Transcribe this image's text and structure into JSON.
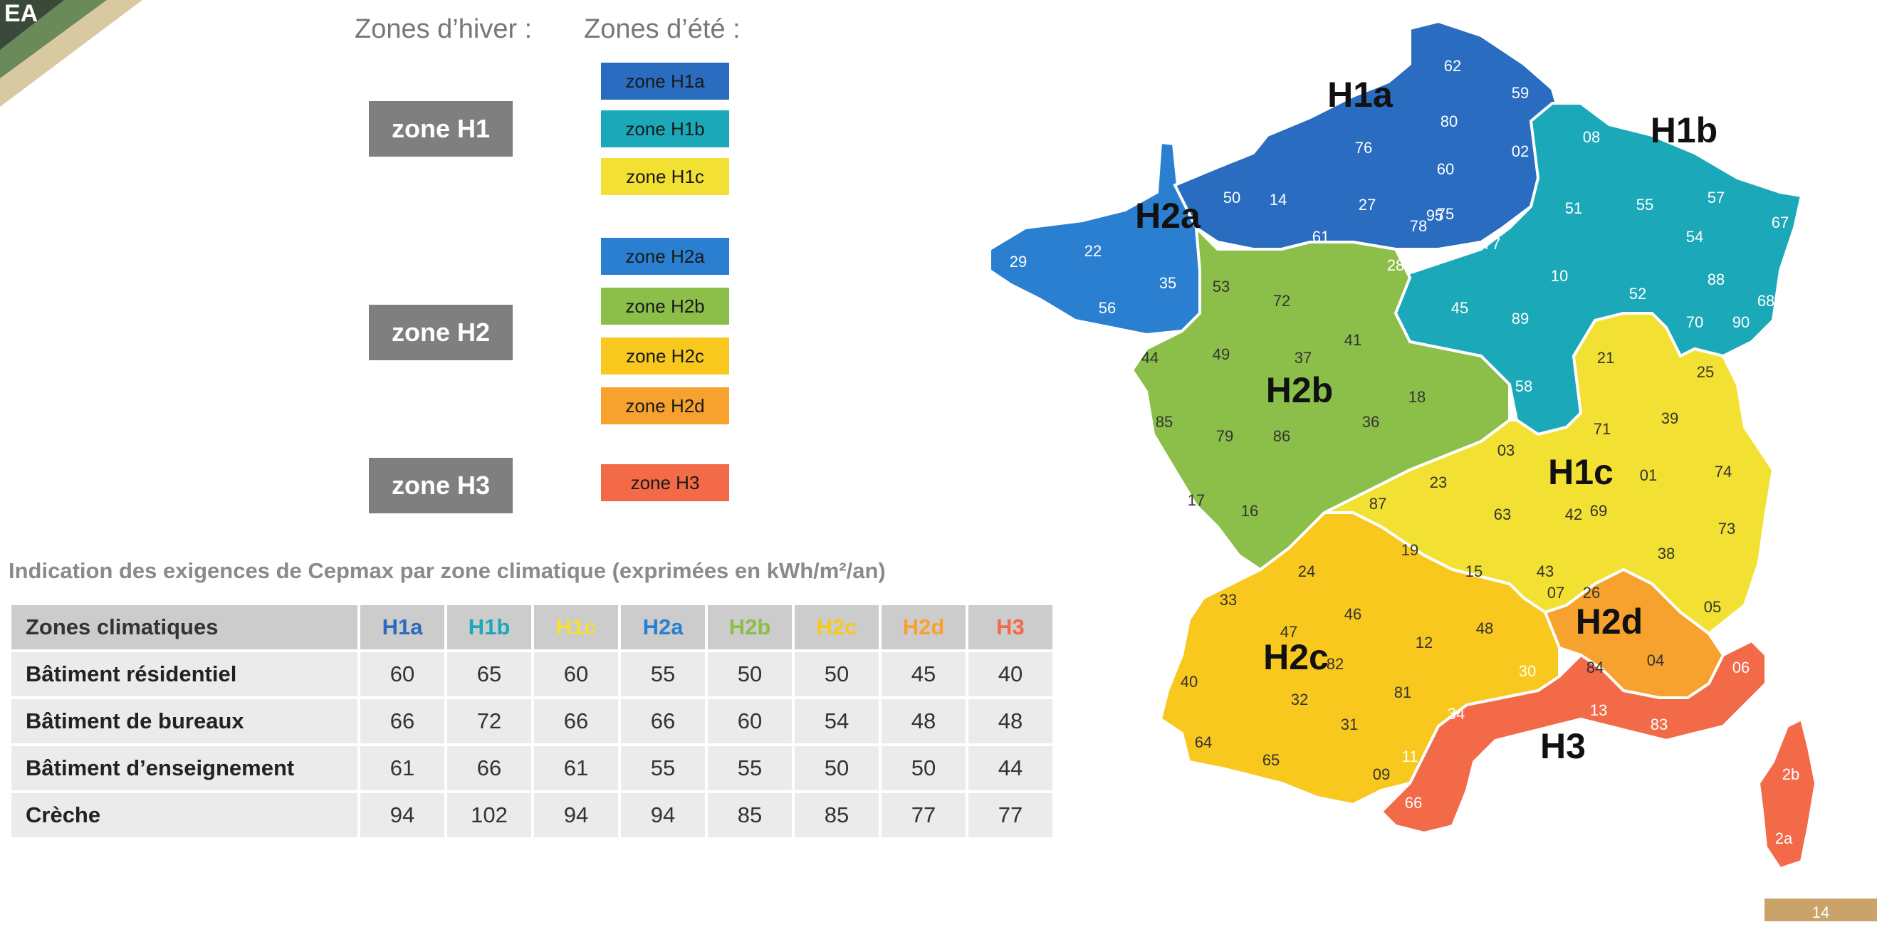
{
  "legend": {
    "winter_heading": "Zones d’hiver :",
    "summer_heading": "Zones d’été :",
    "winter_zones": [
      "zone H1",
      "zone H2",
      "zone H3"
    ],
    "summer_zones": [
      {
        "label": "zone H1a",
        "color": "#2a6cc0",
        "text": "#1a1a1a"
      },
      {
        "label": "zone H1b",
        "color": "#1ba8b8",
        "text": "#1a1a1a"
      },
      {
        "label": "zone H1c",
        "color": "#f2e132",
        "text": "#1a1a1a"
      },
      {
        "label": "zone H2a",
        "color": "#2a7fd0",
        "text": "#1a1a1a"
      },
      {
        "label": "zone H2b",
        "color": "#8cbf4a",
        "text": "#1a1a1a"
      },
      {
        "label": "zone H2c",
        "color": "#f8c81e",
        "text": "#1a1a1a"
      },
      {
        "label": "zone H2d",
        "color": "#f7a22e",
        "text": "#1a1a1a"
      },
      {
        "label": "zone H3",
        "color": "#f26a48",
        "text": "#1a1a1a"
      }
    ]
  },
  "table": {
    "caption": "Indication des exigences de Cepmax par zone climatique (exprimées en kWh/m²/an)",
    "header_label": "Zones climatiques",
    "zones": [
      "H1a",
      "H1b",
      "H1c",
      "H2a",
      "H2b",
      "H2c",
      "H2d",
      "H3"
    ],
    "zone_colors": [
      "#2a6cc0",
      "#1ba8b8",
      "#f2e132",
      "#2a7fd0",
      "#8cbf4a",
      "#f8c81e",
      "#f7a22e",
      "#f26a48"
    ],
    "rows": [
      {
        "label": "Bâtiment résidentiel",
        "values": [
          60,
          65,
          60,
          55,
          50,
          50,
          45,
          40
        ]
      },
      {
        "label": "Bâtiment de bureaux",
        "values": [
          66,
          72,
          66,
          66,
          60,
          54,
          48,
          48
        ]
      },
      {
        "label": "Bâtiment d’enseignement",
        "values": [
          61,
          66,
          61,
          55,
          55,
          50,
          50,
          44
        ]
      },
      {
        "label": "Crèche",
        "values": [
          94,
          102,
          94,
          94,
          85,
          85,
          77,
          77
        ]
      }
    ]
  },
  "map": {
    "zone_labels": [
      "H1a",
      "H1b",
      "H1c",
      "H2a",
      "H2b",
      "H2c",
      "H2d",
      "H3"
    ],
    "zone_colors": {
      "H1a": "#2a6cc0",
      "H1b": "#1ba8b8",
      "H1c": "#f2e132",
      "H2a": "#2a7fd0",
      "H2b": "#8cbf4a",
      "H2c": "#f8c81e",
      "H2d": "#f7a22e",
      "H3": "#f26a48"
    },
    "departments": {
      "H1a": [
        "62",
        "59",
        "80",
        "76",
        "60",
        "02",
        "27",
        "14",
        "61",
        "78",
        "95",
        "75",
        "91",
        "77",
        "28"
      ],
      "H1b": [
        "08",
        "51",
        "55",
        "57",
        "67",
        "54",
        "10",
        "52",
        "88",
        "68",
        "70",
        "90",
        "89",
        "45",
        "58"
      ],
      "H1c": [
        "21",
        "25",
        "39",
        "71",
        "03",
        "01",
        "74",
        "23",
        "87",
        "63",
        "42",
        "69",
        "73",
        "38",
        "19",
        "15",
        "43",
        "05"
      ],
      "H2a": [
        "50",
        "29",
        "22",
        "56",
        "35"
      ],
      "H2b": [
        "53",
        "72",
        "44",
        "49",
        "37",
        "41",
        "18",
        "85",
        "79",
        "86",
        "36",
        "17",
        "16"
      ],
      "H2c": [
        "24",
        "33",
        "47",
        "46",
        "40",
        "82",
        "12",
        "32",
        "81",
        "31",
        "64",
        "65",
        "09"
      ],
      "H2d": [
        "07",
        "26",
        "48",
        "84",
        "04"
      ],
      "H3": [
        "30",
        "06",
        "34",
        "13",
        "83",
        "11",
        "66",
        "2b",
        "2a"
      ]
    }
  },
  "page_number": "14"
}
